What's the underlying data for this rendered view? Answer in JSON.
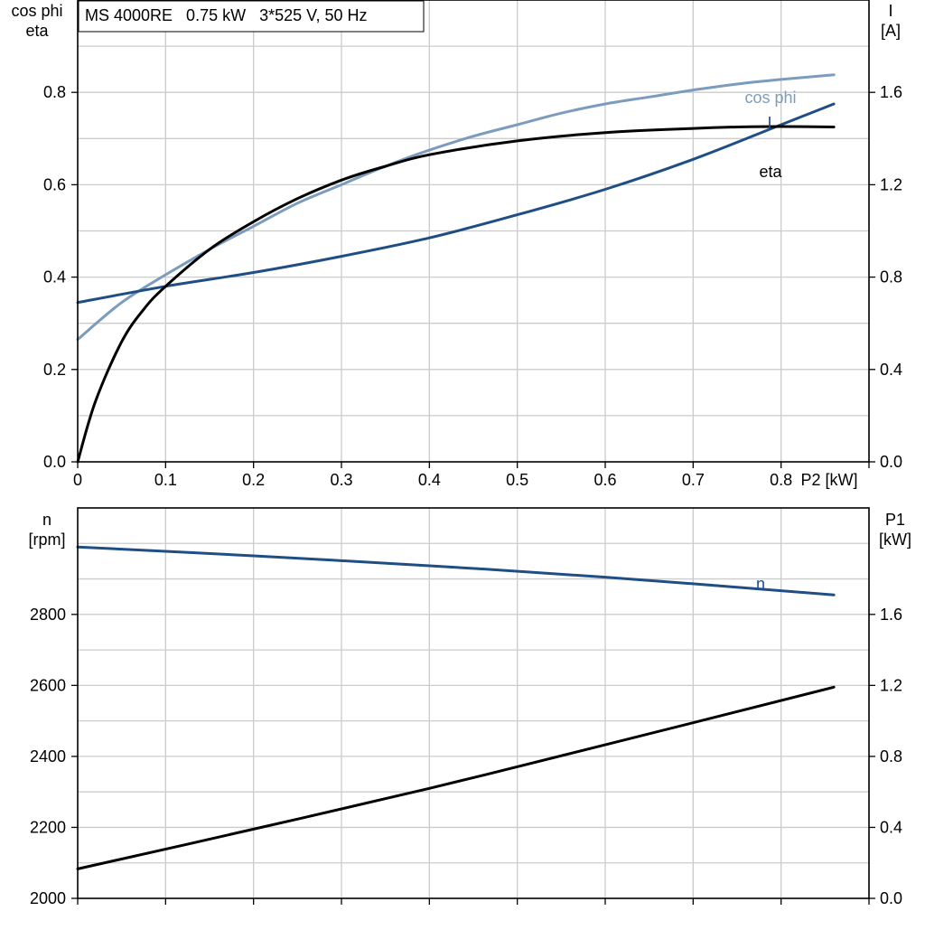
{
  "chart_data": [
    {
      "type": "line",
      "title": "MS 4000RE   0.75 kW   3*525 V, 50 Hz",
      "xlabel": "P2 [kW]",
      "ylabel_left": [
        "cos phi",
        "eta"
      ],
      "ylabel_right": [
        "I",
        "[A]"
      ],
      "xlim": [
        0,
        0.9
      ],
      "ylim_left": [
        0,
        1.0
      ],
      "ylim_right": [
        0,
        2.0
      ],
      "x_ticks": [
        "0",
        "0.1",
        "0.2",
        "0.3",
        "0.4",
        "0.5",
        "0.6",
        "0.7",
        "0.8"
      ],
      "y_ticks_left": [
        "0.0",
        "0.2",
        "0.4",
        "0.6",
        "0.8"
      ],
      "y_ticks_right": [
        "0.0",
        "0.4",
        "0.8",
        "1.2",
        "1.6"
      ],
      "grid": true,
      "series": [
        {
          "name": "cos phi",
          "axis": "left",
          "color": "#7b9cbd",
          "x": [
            0,
            0.05,
            0.1,
            0.15,
            0.2,
            0.25,
            0.3,
            0.35,
            0.4,
            0.45,
            0.5,
            0.55,
            0.6,
            0.65,
            0.7,
            0.75,
            0.8,
            0.86
          ],
          "y": [
            0.265,
            0.345,
            0.405,
            0.46,
            0.51,
            0.56,
            0.6,
            0.64,
            0.675,
            0.705,
            0.73,
            0.755,
            0.775,
            0.79,
            0.805,
            0.818,
            0.828,
            0.838
          ]
        },
        {
          "name": "I",
          "axis": "right",
          "color": "#1f4e85",
          "x": [
            0,
            0.1,
            0.2,
            0.3,
            0.4,
            0.5,
            0.6,
            0.7,
            0.8,
            0.86
          ],
          "y": [
            0.69,
            0.76,
            0.82,
            0.89,
            0.97,
            1.07,
            1.18,
            1.31,
            1.46,
            1.55
          ]
        },
        {
          "name": "eta",
          "axis": "left",
          "color": "#000000",
          "x": [
            0,
            0.02,
            0.05,
            0.075,
            0.1,
            0.15,
            0.2,
            0.25,
            0.3,
            0.35,
            0.4,
            0.5,
            0.6,
            0.7,
            0.75,
            0.8,
            0.86
          ],
          "y": [
            0.0,
            0.13,
            0.26,
            0.33,
            0.38,
            0.46,
            0.52,
            0.57,
            0.61,
            0.64,
            0.665,
            0.695,
            0.713,
            0.722,
            0.725,
            0.726,
            0.725
          ]
        }
      ]
    },
    {
      "type": "line",
      "xlim": [
        0,
        0.9
      ],
      "ylabel_left": [
        "n",
        "[rpm]"
      ],
      "ylabel_right": [
        "P1",
        "[kW]"
      ],
      "ylim_left": [
        2000,
        3100
      ],
      "ylim_right": [
        0,
        2.2
      ],
      "y_ticks_left": [
        "2000",
        "2200",
        "2400",
        "2600",
        "2800"
      ],
      "y_ticks_right": [
        "0.0",
        "0.4",
        "0.8",
        "1.2",
        "1.6"
      ],
      "grid": true,
      "series": [
        {
          "name": "n",
          "axis": "left",
          "color": "#1f4e85",
          "x": [
            0,
            0.2,
            0.4,
            0.6,
            0.86
          ],
          "y": [
            2990,
            2965,
            2937,
            2905,
            2855
          ]
        },
        {
          "axis": "right",
          "color": "#000000",
          "x": [
            0,
            0.2,
            0.4,
            0.6,
            0.86
          ],
          "y": [
            0.166,
            0.39,
            0.62,
            0.865,
            1.19
          ]
        }
      ]
    }
  ]
}
